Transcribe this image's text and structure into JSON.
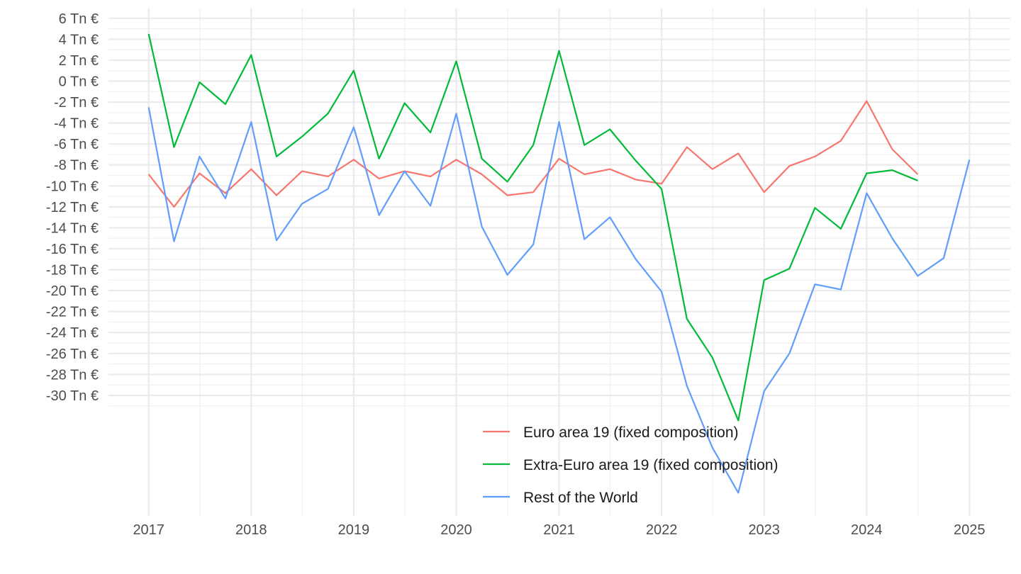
{
  "chart_data": {
    "type": "line",
    "title": "",
    "xlabel": "",
    "ylabel": "",
    "x": [
      "2017-01-01",
      "2017-04-01",
      "2017-07-01",
      "2017-10-01",
      "2018-01-01",
      "2018-04-01",
      "2018-07-01",
      "2018-10-01",
      "2019-01-01",
      "2019-04-01",
      "2019-07-01",
      "2019-10-01",
      "2020-01-01",
      "2020-04-01",
      "2020-07-01",
      "2020-10-01",
      "2021-01-01",
      "2021-04-01",
      "2021-07-01",
      "2021-10-01",
      "2022-01-01",
      "2022-04-01",
      "2022-07-01",
      "2022-10-01",
      "2023-01-01",
      "2023-04-01",
      "2023-07-01",
      "2023-10-01",
      "2024-01-01",
      "2024-04-01",
      "2024-07-01",
      "2024-10-01",
      "2025-01-01"
    ],
    "x_tick_labels": [
      "2017",
      "2018",
      "2019",
      "2020",
      "2021",
      "2022",
      "2023",
      "2024",
      "2025"
    ],
    "y_ticks": [
      6,
      4,
      2,
      0,
      -2,
      -4,
      -6,
      -8,
      -10,
      -12,
      -14,
      -16,
      -18,
      -20,
      -22,
      -24,
      -26,
      -28,
      -30
    ],
    "y_tick_labels": [
      "6 Tn €",
      "4 Tn €",
      "2 Tn €",
      "0 Tn €",
      "-2 Tn €",
      "-4 Tn €",
      "-6 Tn €",
      "-8 Tn €",
      "-10 Tn €",
      "-12 Tn €",
      "-14 Tn €",
      "-16 Tn €",
      "-18 Tn €",
      "-20 Tn €",
      "-22 Tn €",
      "-24 Tn €",
      "-26 Tn €",
      "-28 Tn €",
      "-30 Tn €"
    ],
    "ylim": [
      -40.5,
      6.8
    ],
    "grid": true,
    "legend_position": "bottom-center",
    "series": [
      {
        "name": "Euro area 19 (fixed composition)",
        "color": "#f8766d",
        "values": [
          -8.9,
          -12.0,
          -8.8,
          -10.7,
          -8.4,
          -10.9,
          -8.6,
          -9.1,
          -7.5,
          -9.3,
          -8.6,
          -9.1,
          -7.5,
          -8.9,
          -10.9,
          -10.6,
          -7.4,
          -8.9,
          -8.4,
          -9.4,
          -9.8,
          -6.3,
          -8.4,
          -6.9,
          -10.6,
          -8.1,
          -7.2,
          -5.7,
          -1.9,
          -6.5,
          -8.9,
          null,
          null
        ]
      },
      {
        "name": "Extra-Euro area 19 (fixed composition)",
        "color": "#00ba38",
        "values": [
          4.5,
          -6.3,
          -0.1,
          -2.2,
          2.5,
          -7.2,
          -5.3,
          -3.1,
          1.0,
          -7.4,
          -2.1,
          -4.9,
          1.9,
          -7.4,
          -9.6,
          -6.1,
          2.9,
          -6.1,
          -4.6,
          -7.6,
          -10.3,
          -22.7,
          -26.4,
          -32.4,
          -19.0,
          -17.9,
          -12.1,
          -14.1,
          -8.8,
          -8.5,
          -9.5,
          null,
          null
        ]
      },
      {
        "name": "Rest of the World",
        "color": "#619cff",
        "values": [
          -2.5,
          -15.3,
          -7.2,
          -11.2,
          -3.9,
          -15.2,
          -11.7,
          -10.3,
          -4.4,
          -12.8,
          -8.6,
          -11.9,
          -3.1,
          -13.9,
          -18.5,
          -15.6,
          -3.9,
          -15.1,
          -13.0,
          -17.0,
          -20.1,
          -29.1,
          -35.0,
          -39.3,
          -29.6,
          -26.0,
          -19.4,
          -19.9,
          -10.7,
          -15.0,
          -18.6,
          -16.9,
          -7.5
        ]
      }
    ]
  }
}
